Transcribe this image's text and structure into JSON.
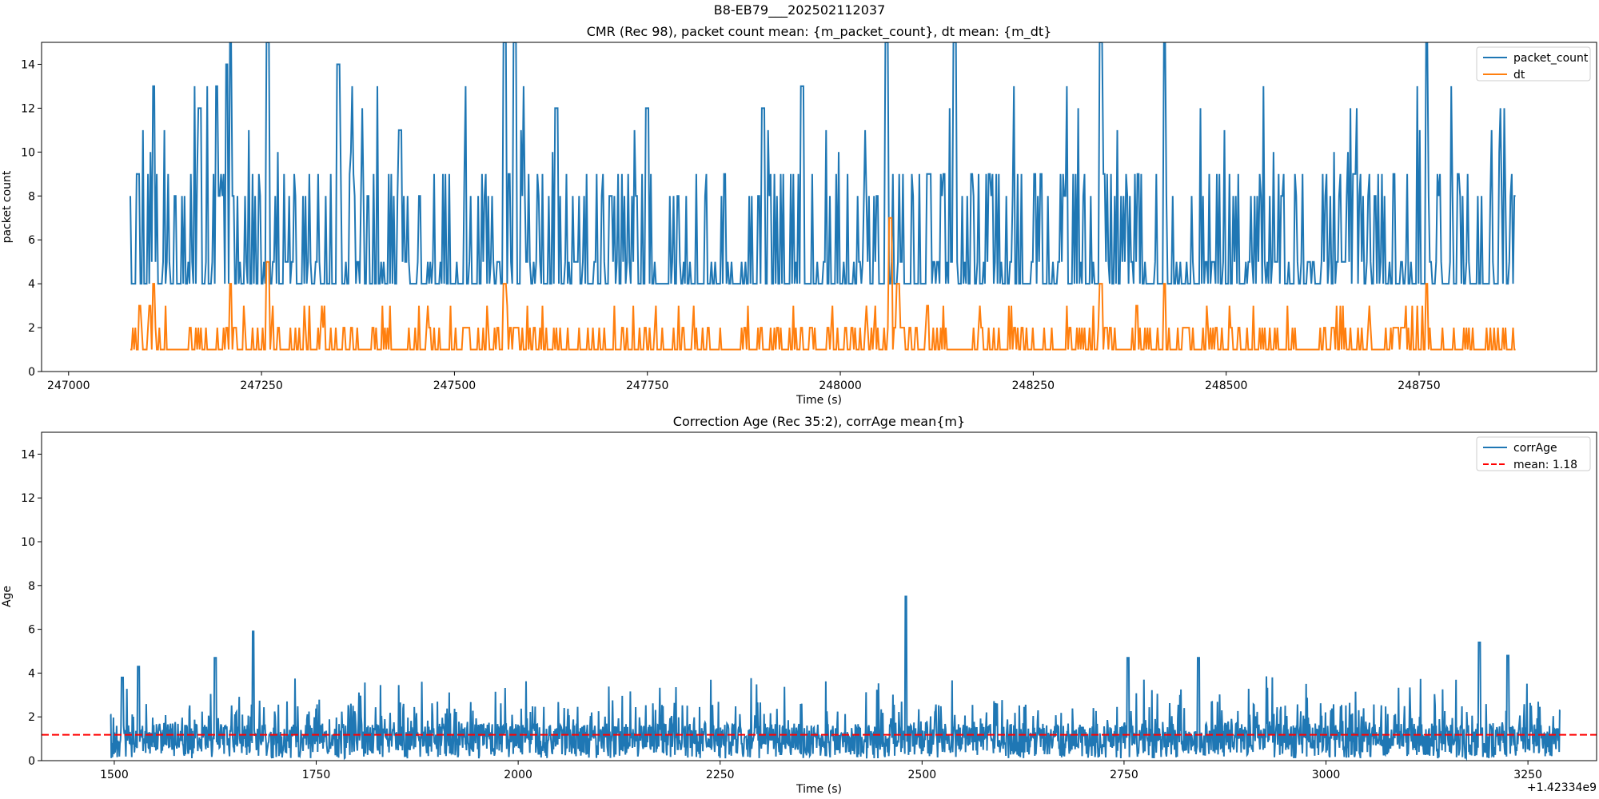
{
  "figure": {
    "suptitle": "B8-EB79___202502112037"
  },
  "colors": {
    "blue": "#1f77b4",
    "orange": "#ff7f0e",
    "red": "#ff0000",
    "axis": "#000000"
  },
  "chart_data": [
    {
      "type": "line",
      "title": "CMR (Rec 98), packet count mean: {m_packet_count}, dt mean: {m_dt}",
      "xlabel": "Time (s)",
      "ylabel": "packet count",
      "xlim": [
        246965,
        248980
      ],
      "ylim": [
        0,
        15
      ],
      "xticks": [
        247000,
        247250,
        247500,
        247750,
        248000,
        248250,
        248500,
        248750
      ],
      "xtick_labels": [
        "247000",
        "247250",
        "247500",
        "247750",
        "248000",
        "248250",
        "248500",
        "248750"
      ],
      "yticks": [
        0,
        2,
        4,
        6,
        8,
        10,
        12,
        14
      ],
      "ytick_labels": [
        "0",
        "2",
        "4",
        "6",
        "8",
        "10",
        "12",
        "14"
      ],
      "legend_position": "top-right",
      "series": [
        {
          "name": "packet_count",
          "color": "#1f77b4",
          "style": "solid",
          "x_range": [
            247080,
            248875
          ],
          "sample_points": [
            [
              247080,
              8
            ],
            [
              247083,
              4
            ],
            [
              247090,
              9
            ],
            [
              247110,
              13
            ],
            [
              247170,
              12
            ],
            [
              247192,
              13
            ],
            [
              247205,
              14
            ],
            [
              247210,
              15
            ],
            [
              247258,
              15
            ],
            [
              247350,
              14
            ],
            [
              247430,
              11
            ],
            [
              247565,
              15
            ],
            [
              247578,
              15
            ],
            [
              247632,
              12
            ],
            [
              247750,
              12
            ],
            [
              247900,
              12
            ],
            [
              247950,
              13
            ],
            [
              248060,
              15
            ],
            [
              248148,
              15
            ],
            [
              248338,
              15
            ],
            [
              248420,
              15
            ],
            [
              248760,
              15
            ],
            [
              248875,
              8
            ]
          ],
          "baseline": 4,
          "typical_peak": 9
        },
        {
          "name": "dt",
          "color": "#ff7f0e",
          "style": "solid",
          "x_range": [
            247080,
            248875
          ],
          "sample_points": [
            [
              247080,
              1
            ],
            [
              247092,
              3
            ],
            [
              247110,
              4
            ],
            [
              247210,
              4
            ],
            [
              247258,
              5
            ],
            [
              247565,
              4
            ],
            [
              248065,
              7
            ],
            [
              248075,
              4
            ],
            [
              248338,
              4
            ],
            [
              248420,
              4
            ],
            [
              248760,
              4
            ],
            [
              248875,
              1
            ]
          ],
          "baseline": 1,
          "typical_peak": 2
        }
      ]
    },
    {
      "type": "line",
      "title": "Correction Age (Rec 35:2), corrAge mean{m}",
      "xlabel": "Time (s)",
      "ylabel": "Age",
      "x_offset_label": "+1.42334e9",
      "xlim": [
        1410,
        3335
      ],
      "ylim": [
        0,
        15
      ],
      "xticks": [
        1500,
        1750,
        2000,
        2250,
        2500,
        2750,
        3000,
        3250
      ],
      "xtick_labels": [
        "1500",
        "1750",
        "2000",
        "2250",
        "2500",
        "2750",
        "3000",
        "3250"
      ],
      "yticks": [
        0,
        2,
        4,
        6,
        8,
        10,
        12,
        14
      ],
      "ytick_labels": [
        "0",
        "2",
        "4",
        "6",
        "8",
        "10",
        "12",
        "14"
      ],
      "legend_position": "top-right",
      "series": [
        {
          "name": "corrAge",
          "color": "#1f77b4",
          "style": "solid",
          "x_range": [
            1495,
            3290
          ],
          "sample_points": [
            [
              1495,
              2.1
            ],
            [
              1510,
              3.8
            ],
            [
              1530,
              4.3
            ],
            [
              1625,
              4.7
            ],
            [
              1672,
              5.9
            ],
            [
              2480,
              7.5
            ],
            [
              2755,
              4.7
            ],
            [
              2842,
              4.7
            ],
            [
              3190,
              5.4
            ],
            [
              3225,
              4.8
            ],
            [
              3290,
              2.3
            ]
          ],
          "baseline_range": [
            0.1,
            2.5
          ]
        },
        {
          "name": "mean: 1.18",
          "color": "#ff0000",
          "style": "dashed",
          "value": 1.18
        }
      ]
    }
  ]
}
